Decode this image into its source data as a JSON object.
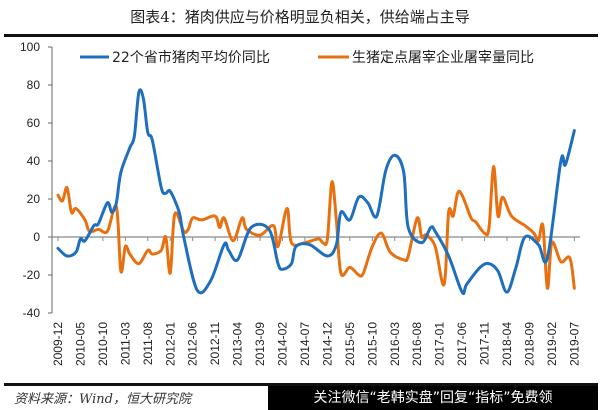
{
  "title": "图表4：猪肉供应与价格明显负相关，供给端占主导",
  "source": "资料来源：Wind，恒大研究院",
  "watermark": "关注微信“老韩实盘”回复“指标”免费领",
  "chart_data": {
    "type": "line",
    "title": "图表4：猪肉供应与价格明显负相关，供给端占主导",
    "xlabel": "",
    "ylabel": "",
    "ylim": [
      -40,
      100
    ],
    "yticks": [
      100,
      80,
      60,
      40,
      20,
      0,
      -20,
      -40
    ],
    "xticks": [
      "2009-12",
      "2010-05",
      "2010-10",
      "2011-03",
      "2011-08",
      "2012-01",
      "2012-06",
      "2012-11",
      "2013-04",
      "2013-09",
      "2014-02",
      "2014-07",
      "2014-12",
      "2015-05",
      "2015-10",
      "2016-03",
      "2016-08",
      "2017-01",
      "2017-06",
      "2017-11",
      "2018-04",
      "2018-09",
      "2019-02",
      "2019-07"
    ],
    "grid": false,
    "legend": "top",
    "series": [
      {
        "name": "22个省市猪肉平均价同比",
        "color": "#1f6fbf",
        "points": [
          [
            "2009-12",
            -6
          ],
          [
            "2010-02",
            -10
          ],
          [
            "2010-04",
            -8
          ],
          [
            "2010-05",
            -1
          ],
          [
            "2010-06",
            -2
          ],
          [
            "2010-08",
            6
          ],
          [
            "2010-09",
            7
          ],
          [
            "2010-11",
            18
          ],
          [
            "2010-12",
            13
          ],
          [
            "2011-01",
            18
          ],
          [
            "2011-02",
            34
          ],
          [
            "2011-04",
            47
          ],
          [
            "2011-05",
            53
          ],
          [
            "2011-06",
            76
          ],
          [
            "2011-07",
            73
          ],
          [
            "2011-08",
            55
          ],
          [
            "2011-09",
            51
          ],
          [
            "2011-11",
            26
          ],
          [
            "2011-12",
            23
          ],
          [
            "2012-01",
            24
          ],
          [
            "2012-03",
            13
          ],
          [
            "2012-04",
            0
          ],
          [
            "2012-07",
            -28
          ],
          [
            "2012-10",
            -23
          ],
          [
            "2013-01",
            -4
          ],
          [
            "2013-02",
            -7
          ],
          [
            "2013-04",
            -12
          ],
          [
            "2013-07",
            5
          ],
          [
            "2013-11",
            4
          ],
          [
            "2014-01",
            -14
          ],
          [
            "2014-02",
            -17
          ],
          [
            "2014-04",
            -14
          ],
          [
            "2014-05",
            -5
          ],
          [
            "2014-08",
            -4
          ],
          [
            "2014-12",
            -10
          ],
          [
            "2015-02",
            -4
          ],
          [
            "2015-03",
            13
          ],
          [
            "2015-05",
            9
          ],
          [
            "2015-07",
            21
          ],
          [
            "2015-09",
            18
          ],
          [
            "2015-11",
            11
          ],
          [
            "2016-01",
            35
          ],
          [
            "2016-03",
            43
          ],
          [
            "2016-05",
            34
          ],
          [
            "2016-06",
            5
          ],
          [
            "2016-09",
            -3
          ],
          [
            "2016-11",
            5
          ],
          [
            "2016-12",
            3
          ],
          [
            "2017-03",
            -10
          ],
          [
            "2017-06",
            -29
          ],
          [
            "2017-07",
            -25
          ],
          [
            "2017-10",
            -16
          ],
          [
            "2017-12",
            -14
          ],
          [
            "2018-02",
            -18
          ],
          [
            "2018-04",
            -29
          ],
          [
            "2018-06",
            -16
          ],
          [
            "2018-08",
            0
          ],
          [
            "2018-11",
            -4
          ],
          [
            "2019-01",
            -11
          ],
          [
            "2019-04",
            40
          ],
          [
            "2019-05",
            38
          ],
          [
            "2019-07",
            56
          ]
        ]
      },
      {
        "name": "生猪定点屠宰企业屠宰量同比",
        "color": "#e8700f",
        "points": [
          [
            "2009-12",
            22
          ],
          [
            "2010-01",
            19
          ],
          [
            "2010-02",
            26
          ],
          [
            "2010-03",
            13
          ],
          [
            "2010-04",
            15
          ],
          [
            "2010-06",
            9
          ],
          [
            "2010-07",
            3
          ],
          [
            "2010-09",
            4
          ],
          [
            "2010-11",
            3
          ],
          [
            "2011-01",
            16
          ],
          [
            "2011-02",
            -18
          ],
          [
            "2011-03",
            -5
          ],
          [
            "2011-04",
            -9
          ],
          [
            "2011-06",
            -14
          ],
          [
            "2011-08",
            -7
          ],
          [
            "2011-09",
            -9
          ],
          [
            "2011-11",
            -7
          ],
          [
            "2011-12",
            0
          ],
          [
            "2012-01",
            -19
          ],
          [
            "2012-02",
            12
          ],
          [
            "2012-04",
            3
          ],
          [
            "2012-05",
            4
          ],
          [
            "2012-06",
            10
          ],
          [
            "2012-08",
            9
          ],
          [
            "2012-11",
            11
          ],
          [
            "2012-12",
            5
          ],
          [
            "2013-01",
            10
          ],
          [
            "2013-03",
            -2
          ],
          [
            "2013-05",
            10
          ],
          [
            "2013-06",
            4
          ],
          [
            "2013-09",
            1
          ],
          [
            "2013-12",
            6
          ],
          [
            "2014-01",
            -5
          ],
          [
            "2014-03",
            15
          ],
          [
            "2014-04",
            -3
          ],
          [
            "2014-07",
            -3
          ],
          [
            "2014-10",
            -1
          ],
          [
            "2014-11",
            -3
          ],
          [
            "2014-12",
            -1
          ],
          [
            "2015-01",
            29
          ],
          [
            "2015-02",
            9
          ],
          [
            "2015-03",
            -19
          ],
          [
            "2015-05",
            -16
          ],
          [
            "2015-07",
            -20
          ],
          [
            "2015-08",
            -19
          ],
          [
            "2015-10",
            -5
          ],
          [
            "2015-12",
            2
          ],
          [
            "2016-02",
            -8
          ],
          [
            "2016-05",
            -12
          ],
          [
            "2016-06",
            -10
          ],
          [
            "2016-08",
            10
          ],
          [
            "2016-09",
            0
          ],
          [
            "2016-10",
            1
          ],
          [
            "2016-12",
            -5
          ],
          [
            "2017-02",
            -25
          ],
          [
            "2017-03",
            13
          ],
          [
            "2017-04",
            11
          ],
          [
            "2017-05",
            23
          ],
          [
            "2017-06",
            22
          ],
          [
            "2017-08",
            10
          ],
          [
            "2017-09",
            8
          ],
          [
            "2017-11",
            2
          ],
          [
            "2017-12",
            5
          ],
          [
            "2018-01",
            37
          ],
          [
            "2018-02",
            11
          ],
          [
            "2018-03",
            21
          ],
          [
            "2018-05",
            11
          ],
          [
            "2018-08",
            6
          ],
          [
            "2018-10",
            2
          ],
          [
            "2018-11",
            -2
          ],
          [
            "2018-12",
            6
          ],
          [
            "2019-01",
            -27
          ],
          [
            "2019-02",
            -3
          ],
          [
            "2019-04",
            -13
          ],
          [
            "2019-06",
            -11
          ],
          [
            "2019-07",
            -27
          ]
        ]
      }
    ]
  }
}
